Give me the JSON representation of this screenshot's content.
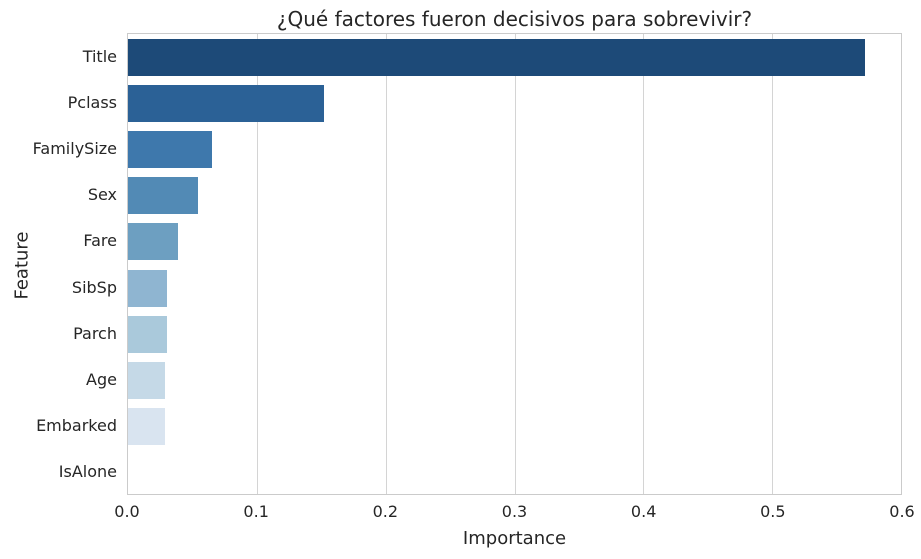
{
  "chart_data": {
    "type": "bar",
    "orientation": "horizontal",
    "title": "¿Qué factores fueron decisivos para sobrevivir?",
    "xlabel": "Importance",
    "ylabel": "Feature",
    "categories": [
      "Title",
      "Pclass",
      "FamilySize",
      "Sex",
      "Fare",
      "SibSp",
      "Parch",
      "Age",
      "Embarked",
      "IsAlone"
    ],
    "values": [
      0.572,
      0.152,
      0.065,
      0.054,
      0.039,
      0.03,
      0.03,
      0.029,
      0.029,
      0.0
    ],
    "xlim": [
      0.0,
      0.6
    ],
    "xticks": [
      0.0,
      0.1,
      0.2,
      0.3,
      0.4,
      0.5,
      0.6
    ],
    "xtick_labels": [
      "0.0",
      "0.1",
      "0.2",
      "0.3",
      "0.4",
      "0.5",
      "0.6"
    ],
    "bar_colors": [
      "#1d4a78",
      "#2b6196",
      "#3e78ac",
      "#528ab5",
      "#6d9fc1",
      "#8fb5d1",
      "#aac9db",
      "#c5d9e7",
      "#d9e4f0",
      "#edf4fa"
    ],
    "grid": true,
    "legend": "none",
    "colors": {
      "grid_color": "#d4d4d4",
      "spine_color": "#cbcbcb",
      "text_color": "#262626",
      "background": "#ffffff"
    }
  }
}
